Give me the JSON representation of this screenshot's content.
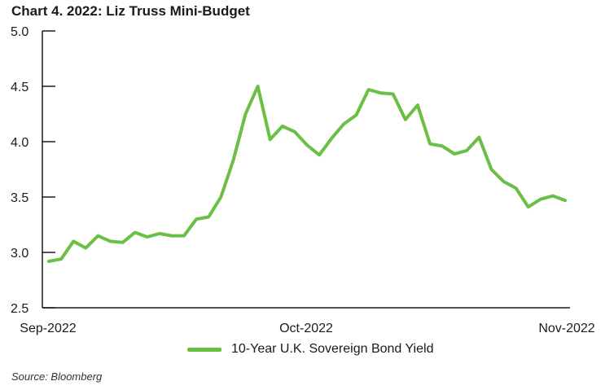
{
  "title": "Chart 4. 2022: Liz Truss Mini-Budget",
  "source": "Source: Bloomberg",
  "colors": {
    "series": "#6abf45",
    "axis": "#1a1a1a"
  },
  "chart_data": {
    "type": "line",
    "title": "Chart 4. 2022: Liz Truss Mini-Budget",
    "xlabel": "",
    "ylabel": "",
    "ylim": [
      2.5,
      5.0
    ],
    "yticks": [
      "2.5",
      "3.0",
      "3.5",
      "4.0",
      "4.5",
      "5.0"
    ],
    "xticks": [
      "Sep-2022",
      "Oct-2022",
      "Nov-2022"
    ],
    "grid": false,
    "legend": "bottom",
    "series": [
      {
        "name": "10-Year U.K. Sovereign Bond Yield",
        "values": [
          2.92,
          2.94,
          3.1,
          3.04,
          3.15,
          3.1,
          3.09,
          3.18,
          3.14,
          3.17,
          3.15,
          3.15,
          3.3,
          3.32,
          3.5,
          3.83,
          4.25,
          4.5,
          4.02,
          4.14,
          4.09,
          3.97,
          3.88,
          4.03,
          4.16,
          4.24,
          4.47,
          4.44,
          4.43,
          4.2,
          4.33,
          3.98,
          3.96,
          3.89,
          3.92,
          4.04,
          3.75,
          3.64,
          3.58,
          3.41,
          3.48,
          3.51,
          3.47
        ]
      }
    ]
  }
}
